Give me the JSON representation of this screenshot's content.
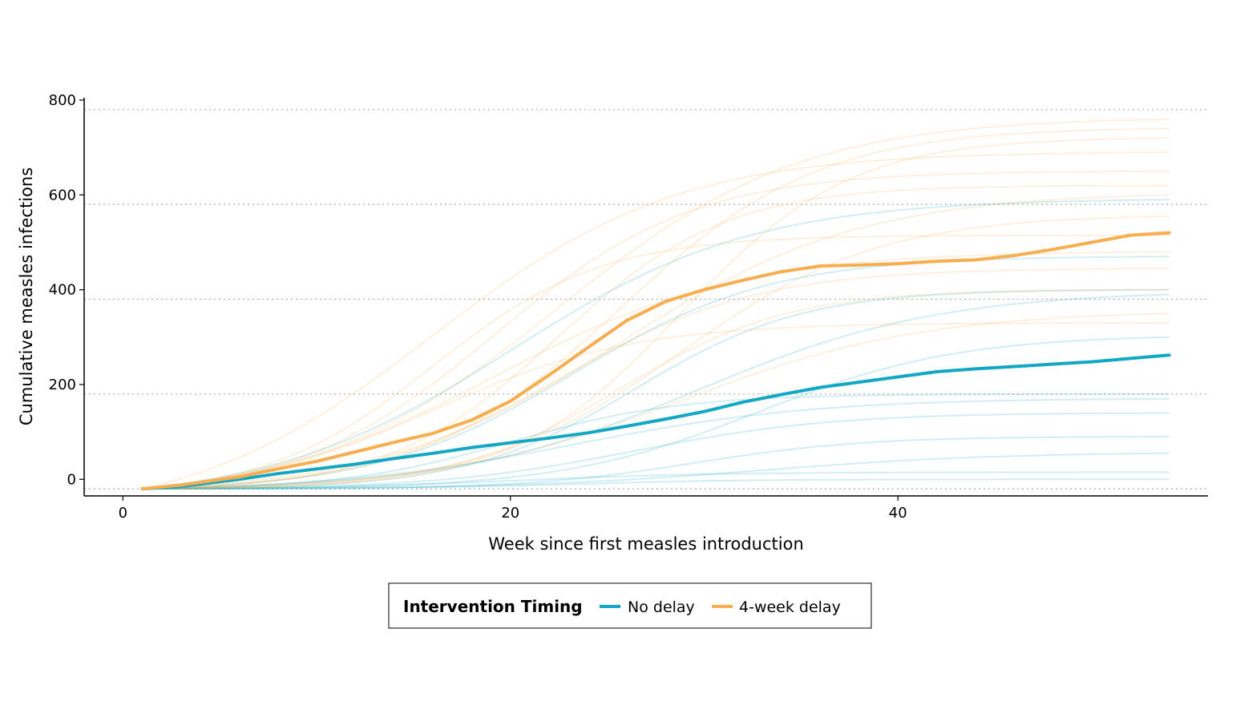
{
  "chart_data": {
    "type": "line",
    "title": "",
    "xlabel": "Week since first measles introduction",
    "ylabel": "Cumulative measles infections",
    "xlim": [
      -2,
      56
    ],
    "ylim": [
      -35,
      805
    ],
    "x_ticks": [
      {
        "value": 0,
        "label": "0"
      },
      {
        "value": 20,
        "label": "20"
      },
      {
        "value": 40,
        "label": "40"
      }
    ],
    "y_ticks": [
      {
        "value": 0,
        "label": "0"
      },
      {
        "value": 200,
        "label": "200"
      },
      {
        "value": 400,
        "label": "400"
      },
      {
        "value": 600,
        "label": "600"
      },
      {
        "value": 800,
        "label": "800"
      }
    ],
    "grid": "horizontal-dotted",
    "legend": {
      "title": "Intervention Timing",
      "placement": "bottom",
      "items": [
        {
          "label": "No delay",
          "color": "#12a8c5"
        },
        {
          "label": "4-week delay",
          "color": "#f8ad4e"
        }
      ]
    },
    "series": [
      {
        "name": "No delay",
        "color": "#12a8c5",
        "x": [
          1,
          3,
          6,
          8,
          10,
          12,
          14,
          16,
          18,
          20,
          22,
          24,
          26,
          28,
          30,
          32,
          34,
          36,
          38,
          40,
          42,
          44,
          46,
          48,
          50,
          52,
          54
        ],
        "y": [
          -20,
          -15,
          0,
          12,
          22,
          32,
          44,
          55,
          67,
          77,
          87,
          98,
          112,
          127,
          143,
          163,
          179,
          194,
          205,
          216,
          227,
          233,
          238,
          243,
          248,
          255,
          262
        ]
      },
      {
        "name": "4-week delay",
        "color": "#f8ad4e",
        "x": [
          1,
          3,
          6,
          8,
          10,
          12,
          14,
          16,
          18,
          20,
          22,
          24,
          26,
          28,
          30,
          32,
          34,
          36,
          38,
          40,
          42,
          44,
          46,
          48,
          50,
          52,
          54
        ],
        "y": [
          -20,
          -12,
          5,
          22,
          38,
          58,
          78,
          97,
          125,
          165,
          220,
          278,
          335,
          375,
          400,
          420,
          438,
          450,
          452,
          455,
          460,
          463,
          472,
          485,
          500,
          515,
          520
        ]
      }
    ],
    "background_runs": [
      {
        "group": "No delay",
        "final": 590
      },
      {
        "group": "No delay",
        "final": 470
      },
      {
        "group": "No delay",
        "final": 400
      },
      {
        "group": "No delay",
        "final": 390
      },
      {
        "group": "No delay",
        "final": 300
      },
      {
        "group": "No delay",
        "final": 180
      },
      {
        "group": "No delay",
        "final": 170
      },
      {
        "group": "No delay",
        "final": 140
      },
      {
        "group": "No delay",
        "final": 90
      },
      {
        "group": "No delay",
        "final": 55
      },
      {
        "group": "No delay",
        "final": 15
      },
      {
        "group": "No delay",
        "final": 0
      },
      {
        "group": "4-week delay",
        "final": 760
      },
      {
        "group": "4-week delay",
        "final": 740
      },
      {
        "group": "4-week delay",
        "final": 720
      },
      {
        "group": "4-week delay",
        "final": 690
      },
      {
        "group": "4-week delay",
        "final": 650
      },
      {
        "group": "4-week delay",
        "final": 620
      },
      {
        "group": "4-week delay",
        "final": 600
      },
      {
        "group": "4-week delay",
        "final": 555
      },
      {
        "group": "4-week delay",
        "final": 515
      },
      {
        "group": "4-week delay",
        "final": 480
      },
      {
        "group": "4-week delay",
        "final": 445
      },
      {
        "group": "4-week delay",
        "final": 400
      },
      {
        "group": "4-week delay",
        "final": 350
      },
      {
        "group": "4-week delay",
        "final": 330
      }
    ]
  }
}
